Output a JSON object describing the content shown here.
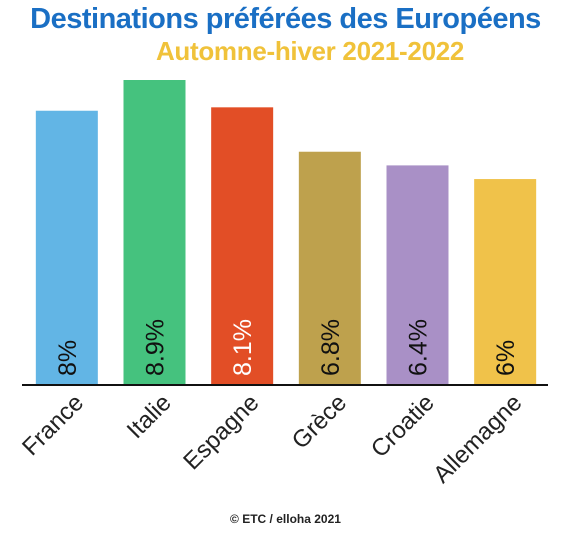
{
  "header": {
    "title": "Destinations préférées des Européens",
    "subtitle": "Automne-hiver 2021-2022"
  },
  "footer": {
    "credit": "© ETC / elloha 2021"
  },
  "colors": {
    "title": "#1a6fc4",
    "subtitle": "#f0c23a",
    "baseline": "#111111"
  },
  "chart_data": {
    "type": "bar",
    "title": "Destinations préférées des Européens",
    "subtitle": "Automne-hiver 2021-2022",
    "categories": [
      "France",
      "Italie",
      "Espagne",
      "Grèce",
      "Croatie",
      "Allemagne"
    ],
    "values": [
      8,
      8.9,
      8.1,
      6.8,
      6.4,
      6
    ],
    "value_labels": [
      "8%",
      "8.9%",
      "8.1%",
      "6.8%",
      "6.4%",
      "6%"
    ],
    "unit": "%",
    "bar_colors": [
      "#62b5e5",
      "#45c27e",
      "#e24e26",
      "#bea14d",
      "#a990c6",
      "#f0c24a"
    ],
    "label_colors": [
      "#111111",
      "#111111",
      "#ffffff",
      "#111111",
      "#111111",
      "#111111"
    ],
    "ylim": [
      0,
      8.9
    ],
    "grid": false,
    "legend": "none"
  }
}
